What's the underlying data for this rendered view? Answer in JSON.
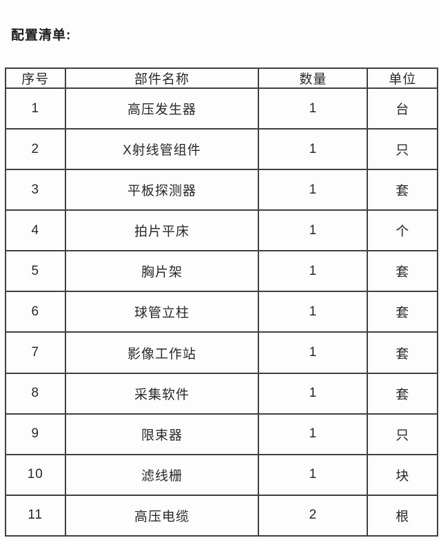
{
  "page": {
    "title": "配置清单:"
  },
  "table": {
    "headers": [
      "序号",
      "部件名称",
      "数量",
      "单位"
    ],
    "rows": [
      {
        "no": "1",
        "name": "高压发生器",
        "qty": "1",
        "unit": "台"
      },
      {
        "no": "2",
        "name": "X射线管组件",
        "qty": "1",
        "unit": "只"
      },
      {
        "no": "3",
        "name": "平板探测器",
        "qty": "1",
        "unit": "套"
      },
      {
        "no": "4",
        "name": "拍片平床",
        "qty": "1",
        "unit": "个"
      },
      {
        "no": "5",
        "name": "胸片架",
        "qty": "1",
        "unit": "套"
      },
      {
        "no": "6",
        "name": "球管立柱",
        "qty": "1",
        "unit": "套"
      },
      {
        "no": "7",
        "name": "影像工作站",
        "qty": "1",
        "unit": "套"
      },
      {
        "no": "8",
        "name": "采集软件",
        "qty": "1",
        "unit": "套"
      },
      {
        "no": "9",
        "name": "限束器",
        "qty": "1",
        "unit": "只"
      },
      {
        "no": "10",
        "name": "滤线栅",
        "qty": "1",
        "unit": "块"
      },
      {
        "no": "11",
        "name": "高压电缆",
        "qty": "2",
        "unit": "根"
      }
    ]
  },
  "colors": {
    "background": "#fdfdfd",
    "border": "#3f3f3f",
    "text": "#282828",
    "title_text": "#1c1c1c"
  }
}
